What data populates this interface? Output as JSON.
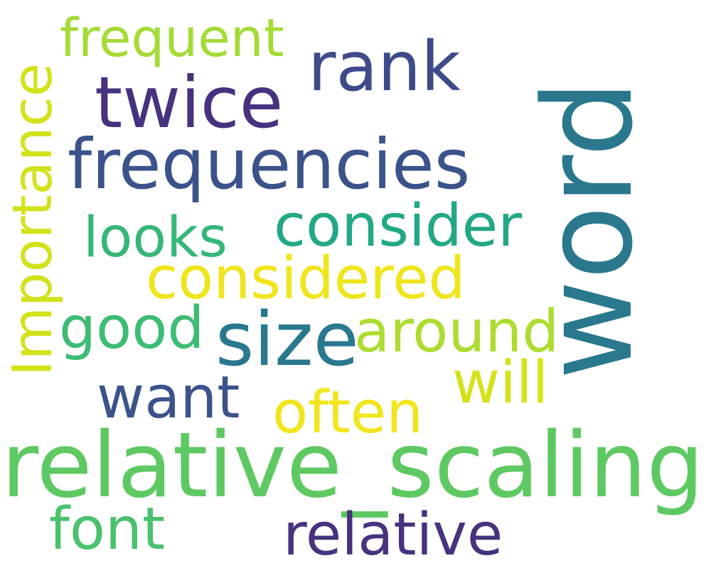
{
  "word_cloud": {
    "words": [
      {
        "text": "word",
        "color": "#2A788E"
      },
      {
        "text": "relative_scaling",
        "color": "#5EC962"
      },
      {
        "text": "frequencies",
        "color": "#3B528B"
      },
      {
        "text": "twice",
        "color": "#46327E"
      },
      {
        "text": "rank",
        "color": "#3E4A89"
      },
      {
        "text": "frequent",
        "color": "#A5DB36"
      },
      {
        "text": "Importance",
        "color": "#D2E21B"
      },
      {
        "text": "consider",
        "color": "#22A884"
      },
      {
        "text": "looks",
        "color": "#35B779"
      },
      {
        "text": "considered",
        "color": "#EFE51C"
      },
      {
        "text": "good",
        "color": "#3DBC74"
      },
      {
        "text": "size",
        "color": "#2A788E"
      },
      {
        "text": "around",
        "color": "#ADDC30"
      },
      {
        "text": "will",
        "color": "#D5E21A"
      },
      {
        "text": "want",
        "color": "#3B528B"
      },
      {
        "text": "often",
        "color": "#F1E51D"
      },
      {
        "text": "font",
        "color": "#4AC16D"
      },
      {
        "text": "relative",
        "color": "#46327E"
      }
    ]
  }
}
